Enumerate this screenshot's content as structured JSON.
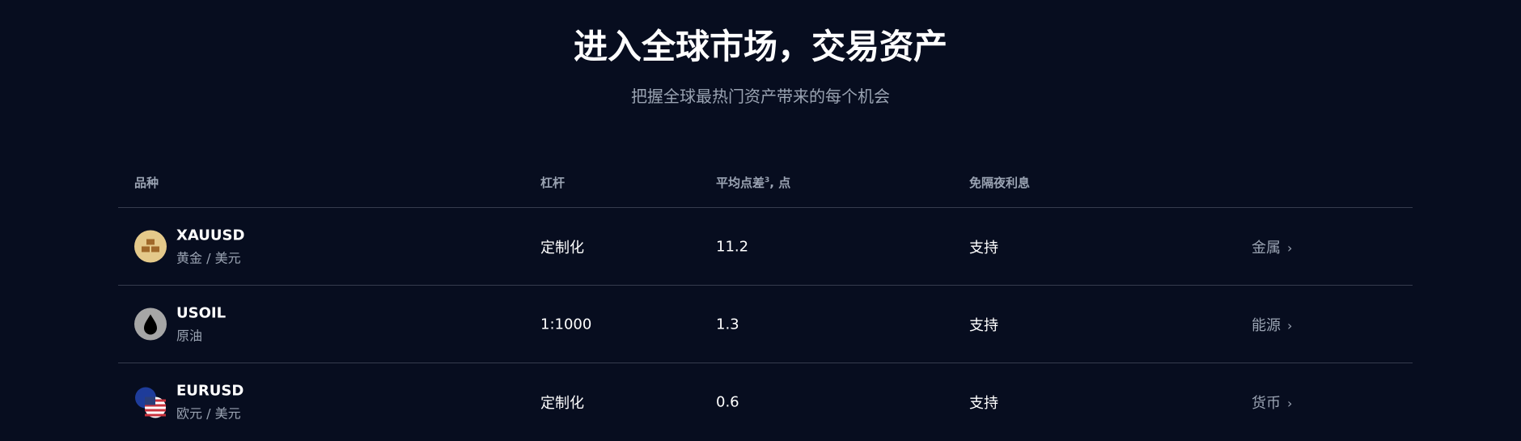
{
  "header": {
    "title": "进入全球市场，交易资产",
    "subtitle": "把握全球最热门资产带来的每个机会"
  },
  "table": {
    "columns": {
      "instrument": "品种",
      "leverage": "杠杆",
      "spread": "平均点差",
      "spread_sup": "3",
      "spread_suffix": ", 点",
      "swap_free": "免隔夜利息"
    },
    "rows": [
      {
        "symbol": "XAUUSD",
        "name": "黄金 / 美元",
        "leverage": "定制化",
        "spread": "11.2",
        "swap_free": "支持",
        "category": "金属",
        "icon": "gold-bars-icon"
      },
      {
        "symbol": "USOIL",
        "name": "原油",
        "leverage": "1:1000",
        "spread": "1.3",
        "swap_free": "支持",
        "category": "能源",
        "icon": "oil-drop-icon"
      },
      {
        "symbol": "EURUSD",
        "name": "欧元 / 美元",
        "leverage": "定制化",
        "spread": "0.6",
        "swap_free": "支持",
        "category": "货币",
        "icon": "eu-us-flags-icon"
      }
    ]
  }
}
